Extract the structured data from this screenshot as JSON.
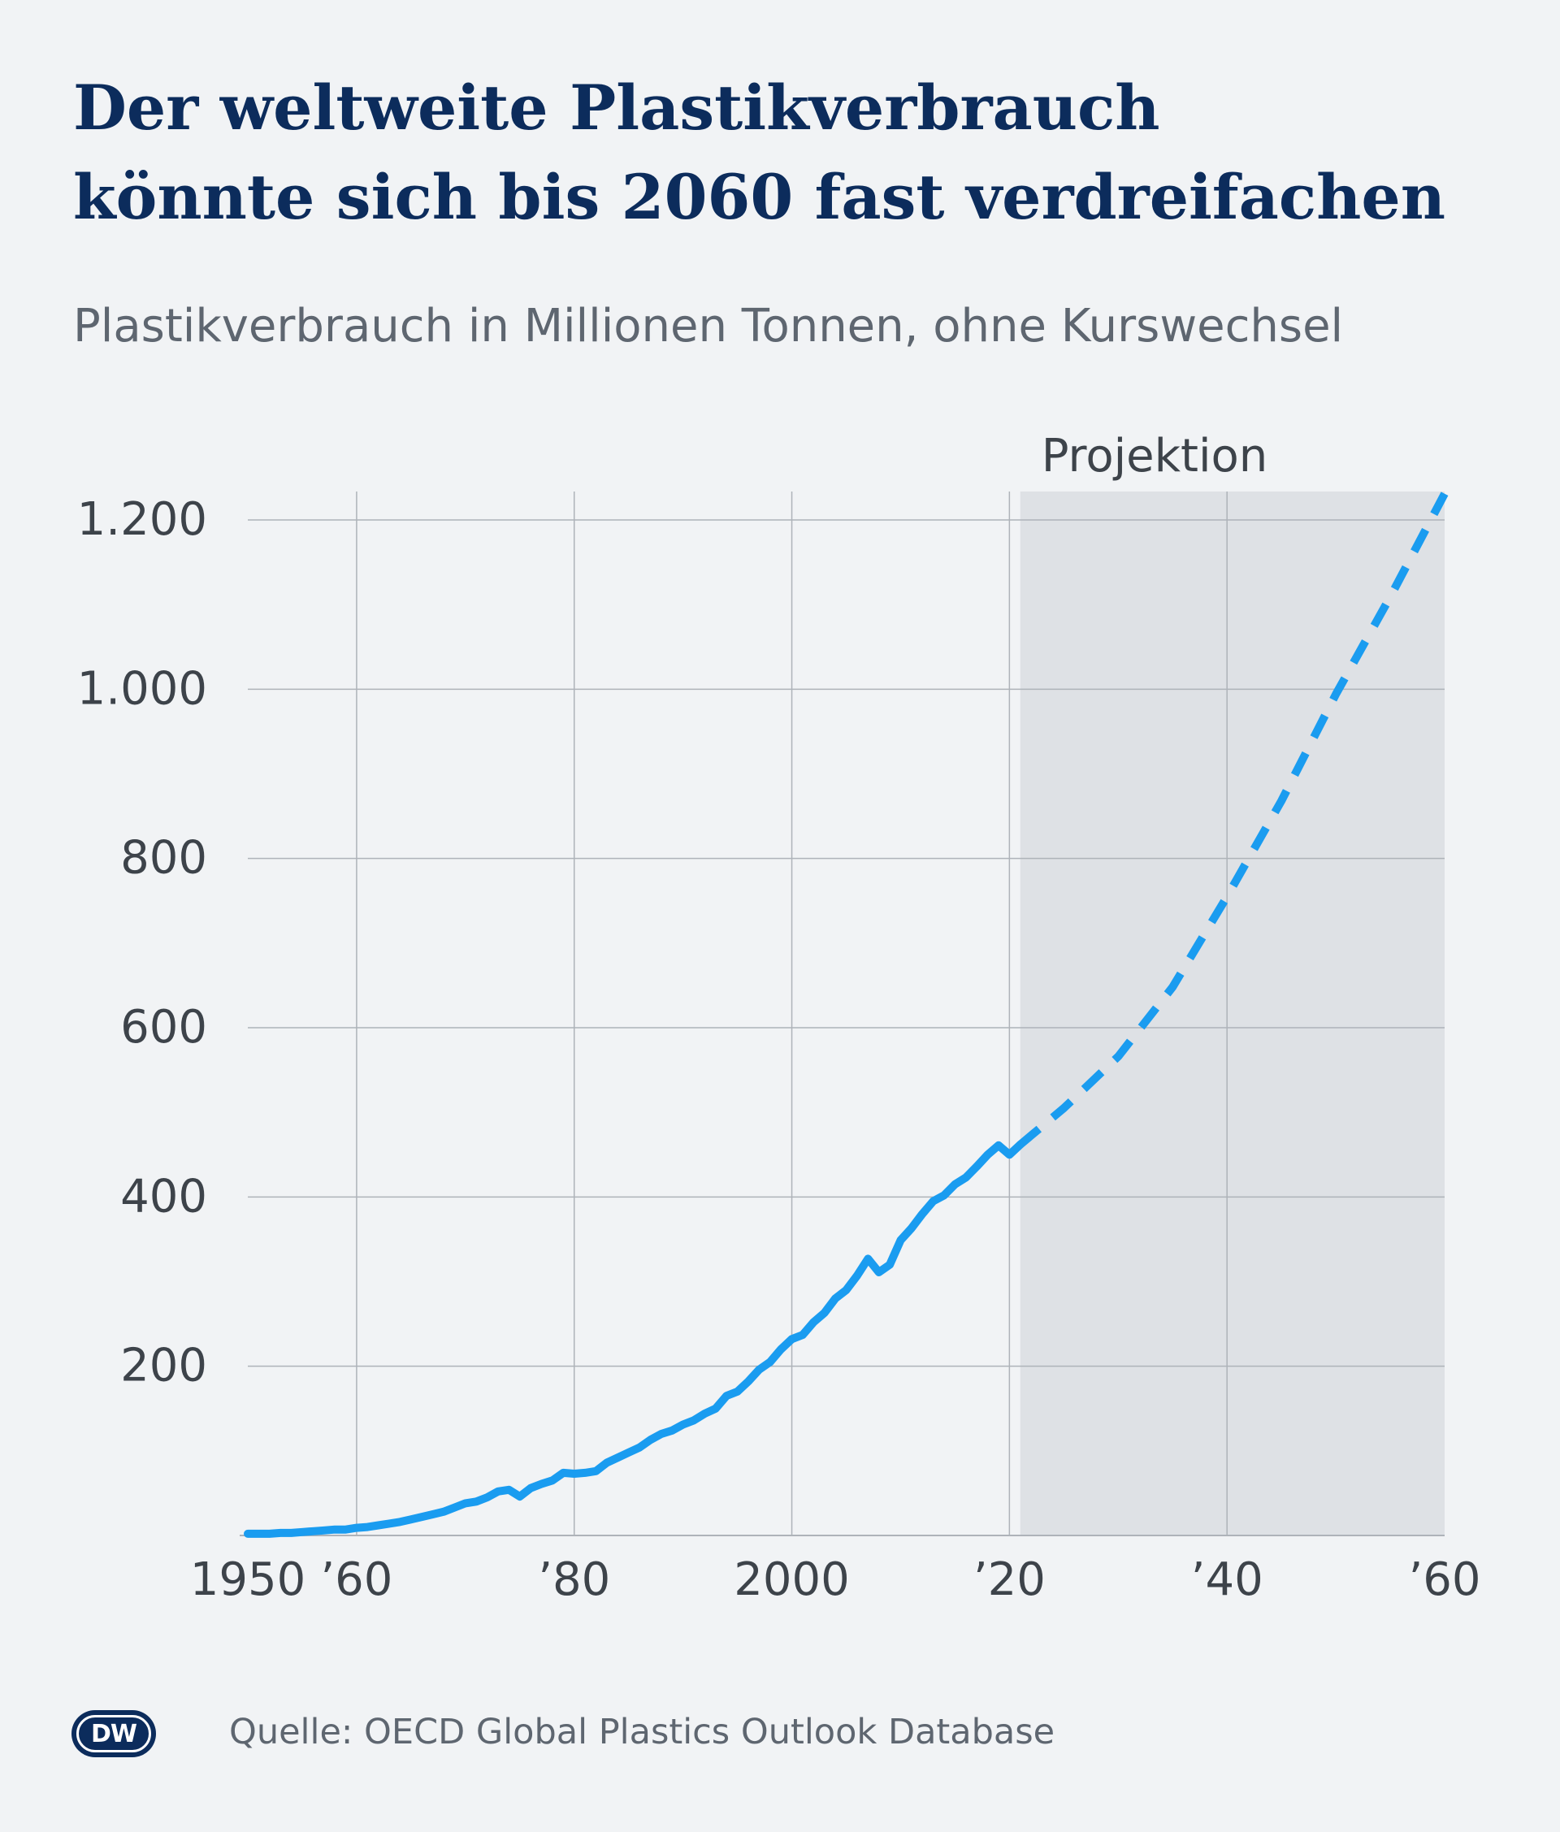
{
  "header": {
    "title_line1": "Der weltweite Plastikverbrauch",
    "title_line2": "könnte sich bis 2060 fast verdreifachen",
    "subtitle": "Plastikverbrauch in Millionen Tonnen, ohne Kurswechsel"
  },
  "footer": {
    "logo": "DW",
    "source": "Quelle: OECD Global Plastics Outlook Database"
  },
  "colors": {
    "background": "#f1f3f5",
    "line": "#1a9cf0",
    "projection_band": "#dee1e5",
    "grid": "#aeb3b9",
    "title": "#0c2c5c",
    "text": "#3d434a"
  },
  "chart_data": {
    "type": "line",
    "xlim": [
      1950,
      2060
    ],
    "ylim": [
      0,
      1200
    ],
    "grid": true,
    "x_ticks": [
      {
        "value": 1950,
        "label": "1950"
      },
      {
        "value": 1960,
        "label": "’60"
      },
      {
        "value": 1980,
        "label": "’80"
      },
      {
        "value": 2000,
        "label": "2000"
      },
      {
        "value": 2020,
        "label": "’20"
      },
      {
        "value": 2040,
        "label": "’40"
      },
      {
        "value": 2060,
        "label": "’60"
      }
    ],
    "y_ticks": [
      {
        "value": 200,
        "label": "200"
      },
      {
        "value": 400,
        "label": "400"
      },
      {
        "value": 600,
        "label": "600"
      },
      {
        "value": 800,
        "label": "800"
      },
      {
        "value": 1000,
        "label": "1.000"
      },
      {
        "value": 1200,
        "label": "1.200"
      }
    ],
    "projection": {
      "label": "Projektion",
      "start": 2021,
      "end": 2060
    },
    "series": [
      {
        "style": "solid",
        "x": [
          1950,
          1951,
          1952,
          1953,
          1954,
          1955,
          1956,
          1957,
          1958,
          1959,
          1960,
          1961,
          1962,
          1963,
          1964,
          1965,
          1966,
          1967,
          1968,
          1969,
          1970,
          1971,
          1972,
          1973,
          1974,
          1975,
          1976,
          1977,
          1978,
          1979,
          1980,
          1981,
          1982,
          1983,
          1984,
          1985,
          1986,
          1987,
          1988,
          1989,
          1990,
          1991,
          1992,
          1993,
          1994,
          1995,
          1996,
          1997,
          1998,
          1999,
          2000,
          2001,
          2002,
          2003,
          2004,
          2005,
          2006,
          2007,
          2008,
          2009,
          2010,
          2011,
          2012,
          2013,
          2014,
          2015,
          2016,
          2017,
          2018,
          2019,
          2020,
          2021
        ],
        "y": [
          2,
          2,
          2,
          3,
          3,
          4,
          5,
          6,
          7,
          7,
          9,
          10,
          12,
          14,
          16,
          19,
          22,
          25,
          28,
          33,
          38,
          40,
          45,
          52,
          54,
          46,
          56,
          61,
          65,
          74,
          73,
          74,
          76,
          86,
          92,
          98,
          104,
          113,
          120,
          124,
          131,
          136,
          144,
          150,
          165,
          170,
          182,
          196,
          205,
          220,
          232,
          237,
          252,
          263,
          280,
          290,
          307,
          327,
          311,
          320,
          349,
          363,
          380,
          395,
          402,
          415,
          423,
          436,
          450,
          461,
          450,
          462
        ]
      },
      {
        "style": "dashed",
        "x": [
          2021,
          2025,
          2030,
          2035,
          2040,
          2045,
          2050,
          2055,
          2060
        ],
        "y": [
          462,
          505,
          566,
          648,
          755,
          868,
          994,
          1109,
          1231
        ]
      }
    ]
  }
}
